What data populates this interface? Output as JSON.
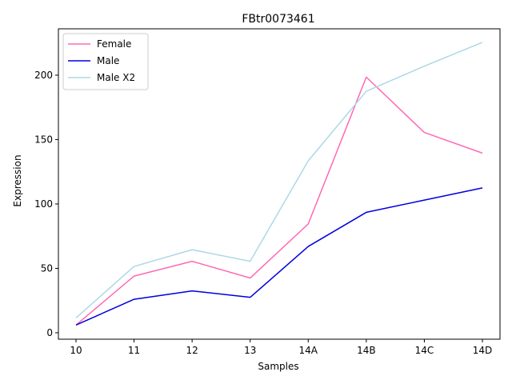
{
  "chart_data": {
    "type": "line",
    "title": "FBtr0073461",
    "xlabel": "Samples",
    "ylabel": "Expression",
    "categories": [
      "10",
      "11",
      "12",
      "13",
      "14A",
      "14B",
      "14C",
      "14D"
    ],
    "ylim": [
      -5,
      236
    ],
    "yticks": [
      0,
      50,
      100,
      150,
      200
    ],
    "grid": false,
    "legend_position": "top-left",
    "series": [
      {
        "name": "Female",
        "color": "#ff69b4",
        "values": [
          6,
          44,
          55.5,
          42.5,
          84.5,
          198.5,
          155.5,
          139.5
        ]
      },
      {
        "name": "Male",
        "color": "#0000dd",
        "values": [
          6,
          26,
          32.5,
          27.5,
          67,
          93.5,
          103,
          112.5
        ]
      },
      {
        "name": "Male X2",
        "color": "#add8e6",
        "values": [
          11.5,
          51.5,
          64.5,
          55.5,
          133.5,
          187.5,
          207,
          225.5
        ]
      }
    ]
  }
}
